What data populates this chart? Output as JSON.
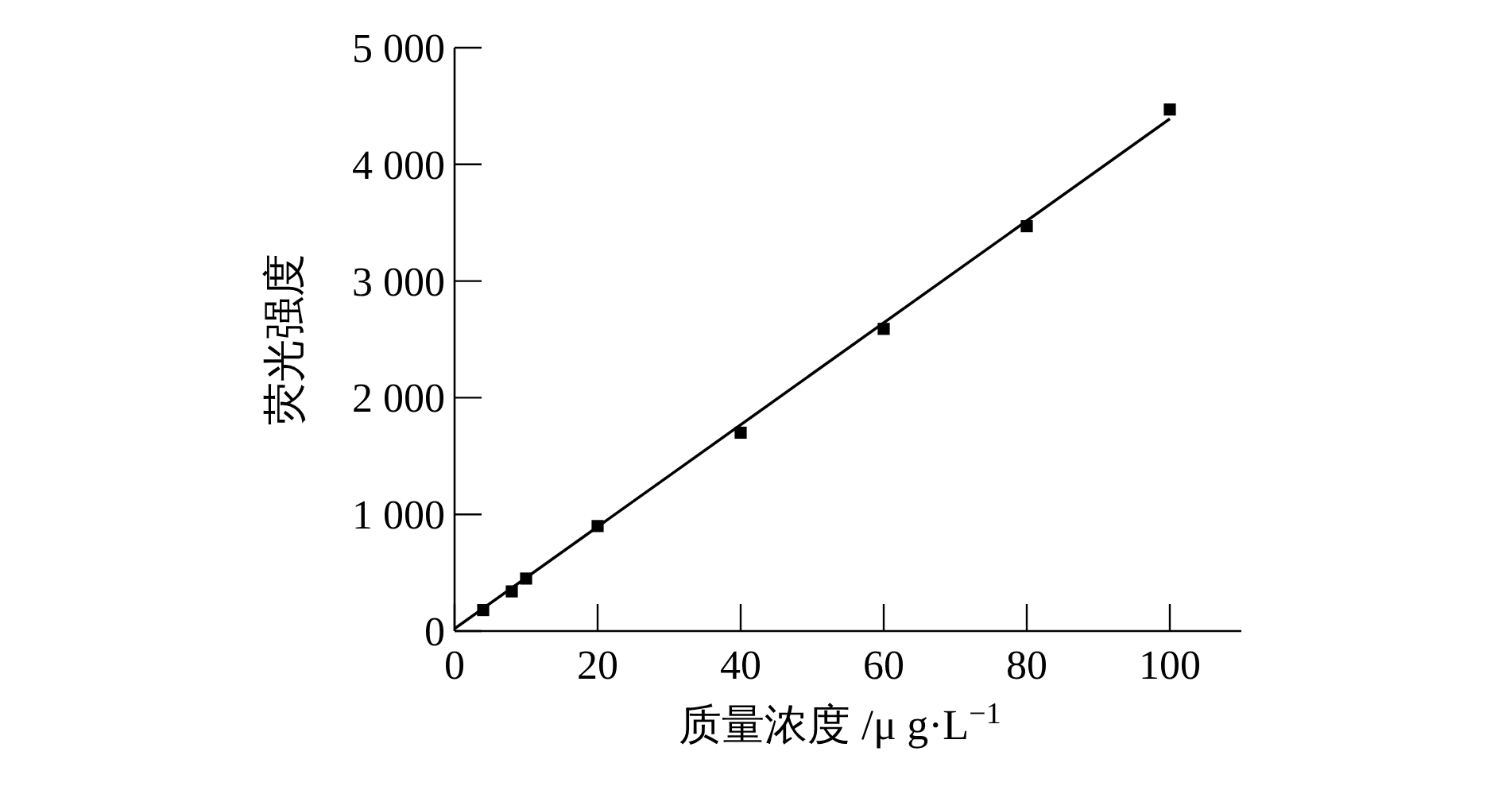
{
  "chart_data": {
    "type": "scatter",
    "xlabel": "质量浓度 /μ g·L$^{−1}$",
    "ylabel": "荧光强度",
    "xlim": [
      0,
      110
    ],
    "xticks": [
      0,
      20,
      40,
      60,
      80,
      100
    ],
    "ylim": [
      0,
      5000
    ],
    "yticks": [
      {
        "value": 0,
        "label": "0"
      },
      {
        "value": 1000,
        "label": "1 000"
      },
      {
        "value": 2000,
        "label": "2 000"
      },
      {
        "value": 3000,
        "label": "3 000"
      },
      {
        "value": 4000,
        "label": "4 000"
      },
      {
        "value": 5000,
        "label": "5 000"
      }
    ],
    "grid": false,
    "marker": "square",
    "series": [
      {
        "color": "#000000",
        "x": [
          4,
          8,
          10,
          20,
          40,
          60,
          80,
          100
        ],
        "values": [
          180,
          340,
          450,
          900,
          1700,
          2590,
          3470,
          4470
        ]
      },
      {
        "type": "line",
        "color": "#000000",
        "marker": "none",
        "x": [
          0,
          100
        ],
        "values": [
          20,
          4390
        ]
      }
    ]
  }
}
